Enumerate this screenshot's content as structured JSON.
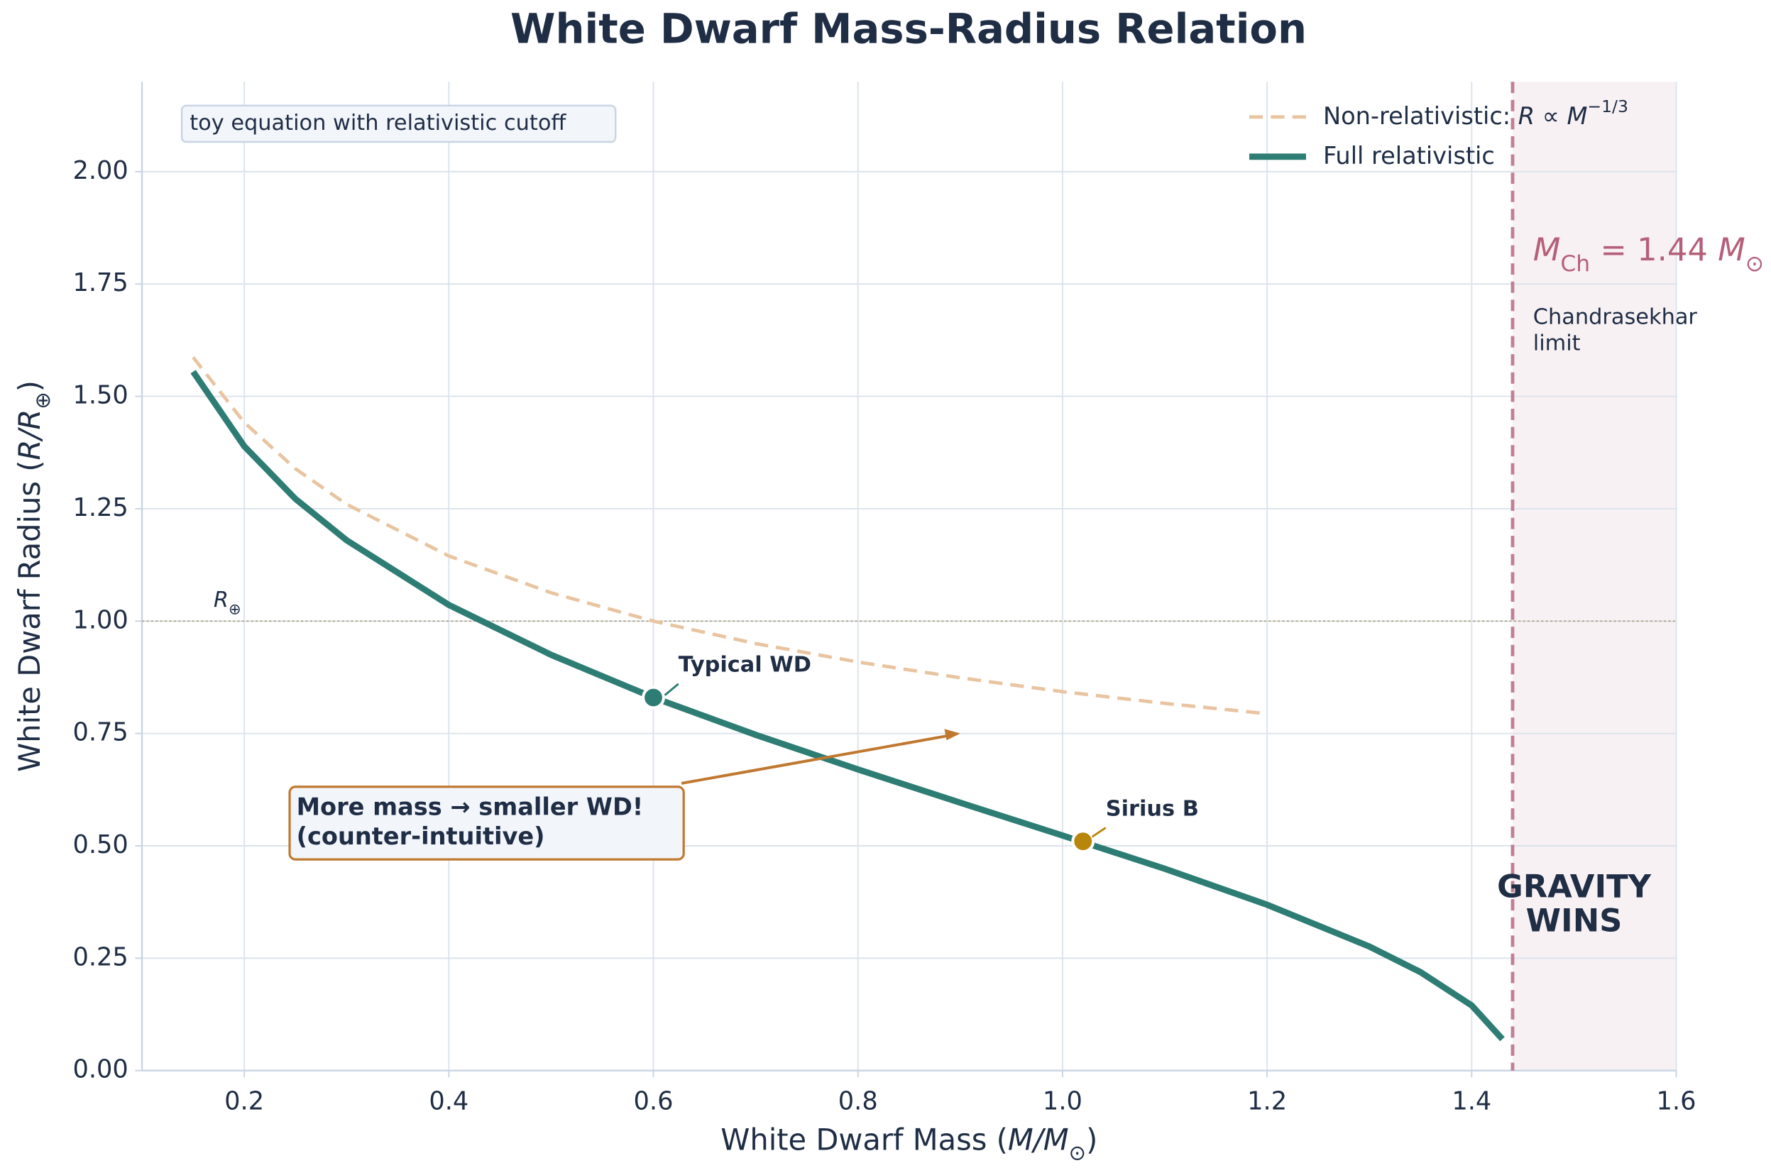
{
  "chart_data": {
    "type": "line",
    "title": "White Dwarf Mass-Radius Relation",
    "x_label": [
      "White Dwarf Mass (",
      "M/M",
      "⊙",
      ")"
    ],
    "y_label": [
      "White Dwarf Radius (",
      "R/R",
      "⊕",
      ")"
    ],
    "xlim": [
      0.1,
      1.6
    ],
    "xticks": [
      0.2,
      0.4,
      0.6,
      0.8,
      {
        "value": 1,
        "label": "1.0"
      },
      1.2,
      1.4,
      1.6
    ],
    "ylim": [
      0,
      2.2
    ],
    "yticks": [
      {
        "value": 0,
        "label": "0.00"
      },
      {
        "value": 0.25,
        "label": "0.25"
      },
      {
        "value": 0.5,
        "label": "0.50"
      },
      {
        "value": 0.75,
        "label": "0.75"
      },
      {
        "value": 1,
        "label": "1.00"
      },
      {
        "value": 1.25,
        "label": "1.25"
      },
      {
        "value": 1.5,
        "label": "1.50"
      },
      {
        "value": 1.75,
        "label": "1.75"
      },
      {
        "value": 2,
        "label": "2.00"
      }
    ],
    "grid": true,
    "legend": "upper right",
    "series": [
      {
        "name": [
          "Non-relativistic: ",
          "R ∝ M",
          "−1/3"
        ],
        "color": "#e8c4a0",
        "dashed": true,
        "x": [
          0.15,
          0.2,
          0.25,
          0.3,
          0.4,
          0.5,
          0.6,
          0.7,
          0.8,
          0.9,
          1.0,
          1.1,
          1.2
        ],
        "values": [
          1.587,
          1.442,
          1.339,
          1.26,
          1.145,
          1.063,
          1.0,
          0.95,
          0.909,
          0.874,
          0.843,
          0.817,
          0.794
        ]
      },
      {
        "name": [
          "Full relativistic"
        ],
        "color": "#2e7d74",
        "dashed": false,
        "x": [
          0.15,
          0.2,
          0.25,
          0.3,
          0.4,
          0.5,
          0.6,
          0.7,
          0.8,
          0.9,
          1.0,
          1.1,
          1.2,
          1.3,
          1.35,
          1.4,
          1.43
        ],
        "values": [
          1.555,
          1.389,
          1.272,
          1.18,
          1.036,
          0.925,
          0.83,
          0.747,
          0.67,
          0.596,
          0.523,
          0.449,
          0.369,
          0.276,
          0.219,
          0.145,
          0.07
        ]
      }
    ],
    "points": [
      {
        "label": "Typical WD",
        "x": 0.6,
        "y": 0.83,
        "color": "#2e7d74"
      },
      {
        "label": "Sirius B",
        "x": 1.02,
        "y": 0.51,
        "color": "#b8860b"
      }
    ],
    "reference_line": {
      "value": 1.0,
      "label": [
        "R",
        "⊕"
      ]
    },
    "limit": {
      "value": 1.44,
      "label": [
        "M",
        "Ch",
        " = 1.44 ",
        "M",
        "⊙"
      ],
      "note": [
        "Chandrasekhar",
        "limit"
      ],
      "region_label": [
        "GRAVITY",
        "WINS"
      ]
    },
    "note": "toy equation with relativistic cutoff",
    "callout": {
      "text": [
        "More mass → smaller WD!",
        "(counter-intuitive)"
      ],
      "x": 0.9,
      "y": 0.75
    }
  }
}
